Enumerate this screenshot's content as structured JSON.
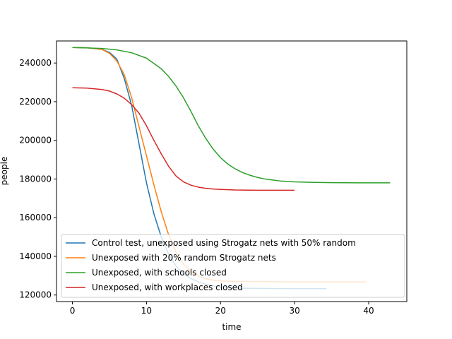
{
  "chart_data": {
    "type": "line",
    "title": "",
    "xlabel": "time",
    "ylabel": "people",
    "xlim": [
      -2.15,
      45.15
    ],
    "ylim": [
      116600,
      251400
    ],
    "xticks": [
      0,
      10,
      20,
      30,
      40
    ],
    "yticks": [
      120000,
      140000,
      160000,
      180000,
      200000,
      220000,
      240000
    ],
    "grid": false,
    "legend_position": "lower-left",
    "series": [
      {
        "name": " Control test, unexposed using Strogatz nets with 50% random",
        "color": "#1f77b4",
        "points": [
          [
            0,
            248000
          ],
          [
            2,
            247900
          ],
          [
            4,
            247000
          ],
          [
            5,
            245500
          ],
          [
            6,
            242000
          ],
          [
            7,
            232000
          ],
          [
            8,
            218000
          ],
          [
            9,
            198000
          ],
          [
            10,
            178000
          ],
          [
            11,
            162000
          ],
          [
            12,
            150000
          ],
          [
            13,
            141000
          ],
          [
            14,
            135000
          ],
          [
            15,
            131000
          ],
          [
            16,
            128500
          ],
          [
            17,
            126800
          ],
          [
            18,
            125500
          ],
          [
            19,
            124700
          ],
          [
            20,
            124100
          ],
          [
            22,
            123600
          ],
          [
            25,
            123400
          ],
          [
            30,
            123300
          ],
          [
            34.3,
            123300
          ]
        ]
      },
      {
        "name": "Unexposed  with 20% random Strogatz nets",
        "color": "#ff7f0e",
        "points": [
          [
            0,
            248000
          ],
          [
            2,
            247900
          ],
          [
            4,
            247000
          ],
          [
            5,
            245000
          ],
          [
            6,
            241000
          ],
          [
            7,
            234000
          ],
          [
            8,
            222000
          ],
          [
            9,
            207000
          ],
          [
            10,
            192000
          ],
          [
            11,
            177000
          ],
          [
            12,
            163000
          ],
          [
            13,
            151000
          ],
          [
            14,
            142000
          ],
          [
            15,
            136000
          ],
          [
            16,
            132000
          ],
          [
            17,
            129700
          ],
          [
            18,
            128400
          ],
          [
            19,
            127700
          ],
          [
            20,
            127300
          ],
          [
            22,
            127000
          ],
          [
            25,
            126900
          ],
          [
            30,
            126800
          ],
          [
            35,
            126800
          ],
          [
            39.7,
            126800
          ]
        ]
      },
      {
        "name": "Unexposed, with schools closed",
        "color": "#2ca02c",
        "points": [
          [
            0,
            248000
          ],
          [
            2,
            247800
          ],
          [
            4,
            247500
          ],
          [
            6,
            246800
          ],
          [
            8,
            245300
          ],
          [
            10,
            242500
          ],
          [
            12,
            237000
          ],
          [
            13,
            233000
          ],
          [
            14,
            228000
          ],
          [
            15,
            222000
          ],
          [
            16,
            215000
          ],
          [
            17,
            207500
          ],
          [
            18,
            201000
          ],
          [
            19,
            195500
          ],
          [
            20,
            191000
          ],
          [
            21,
            187700
          ],
          [
            22,
            185200
          ],
          [
            23,
            183300
          ],
          [
            24,
            181900
          ],
          [
            25,
            180800
          ],
          [
            26,
            180000
          ],
          [
            28,
            179000
          ],
          [
            30,
            178500
          ],
          [
            32,
            178300
          ],
          [
            35,
            178100
          ],
          [
            40,
            178000
          ],
          [
            42.9,
            178000
          ]
        ]
      },
      {
        "name": "Unexposed, with workplaces closed",
        "color": "#d62728",
        "points": [
          [
            0,
            227200
          ],
          [
            2,
            227000
          ],
          [
            4,
            226300
          ],
          [
            5,
            225500
          ],
          [
            6,
            224000
          ],
          [
            7,
            221800
          ],
          [
            8,
            218500
          ],
          [
            9,
            214000
          ],
          [
            10,
            207500
          ],
          [
            11,
            200000
          ],
          [
            12,
            193000
          ],
          [
            13,
            186500
          ],
          [
            14,
            181500
          ],
          [
            15,
            178500
          ],
          [
            16,
            176800
          ],
          [
            17,
            175800
          ],
          [
            18,
            175200
          ],
          [
            19,
            174800
          ],
          [
            20,
            174600
          ],
          [
            22,
            174300
          ],
          [
            25,
            174200
          ],
          [
            28,
            174200
          ],
          [
            30,
            174200
          ]
        ]
      }
    ]
  }
}
